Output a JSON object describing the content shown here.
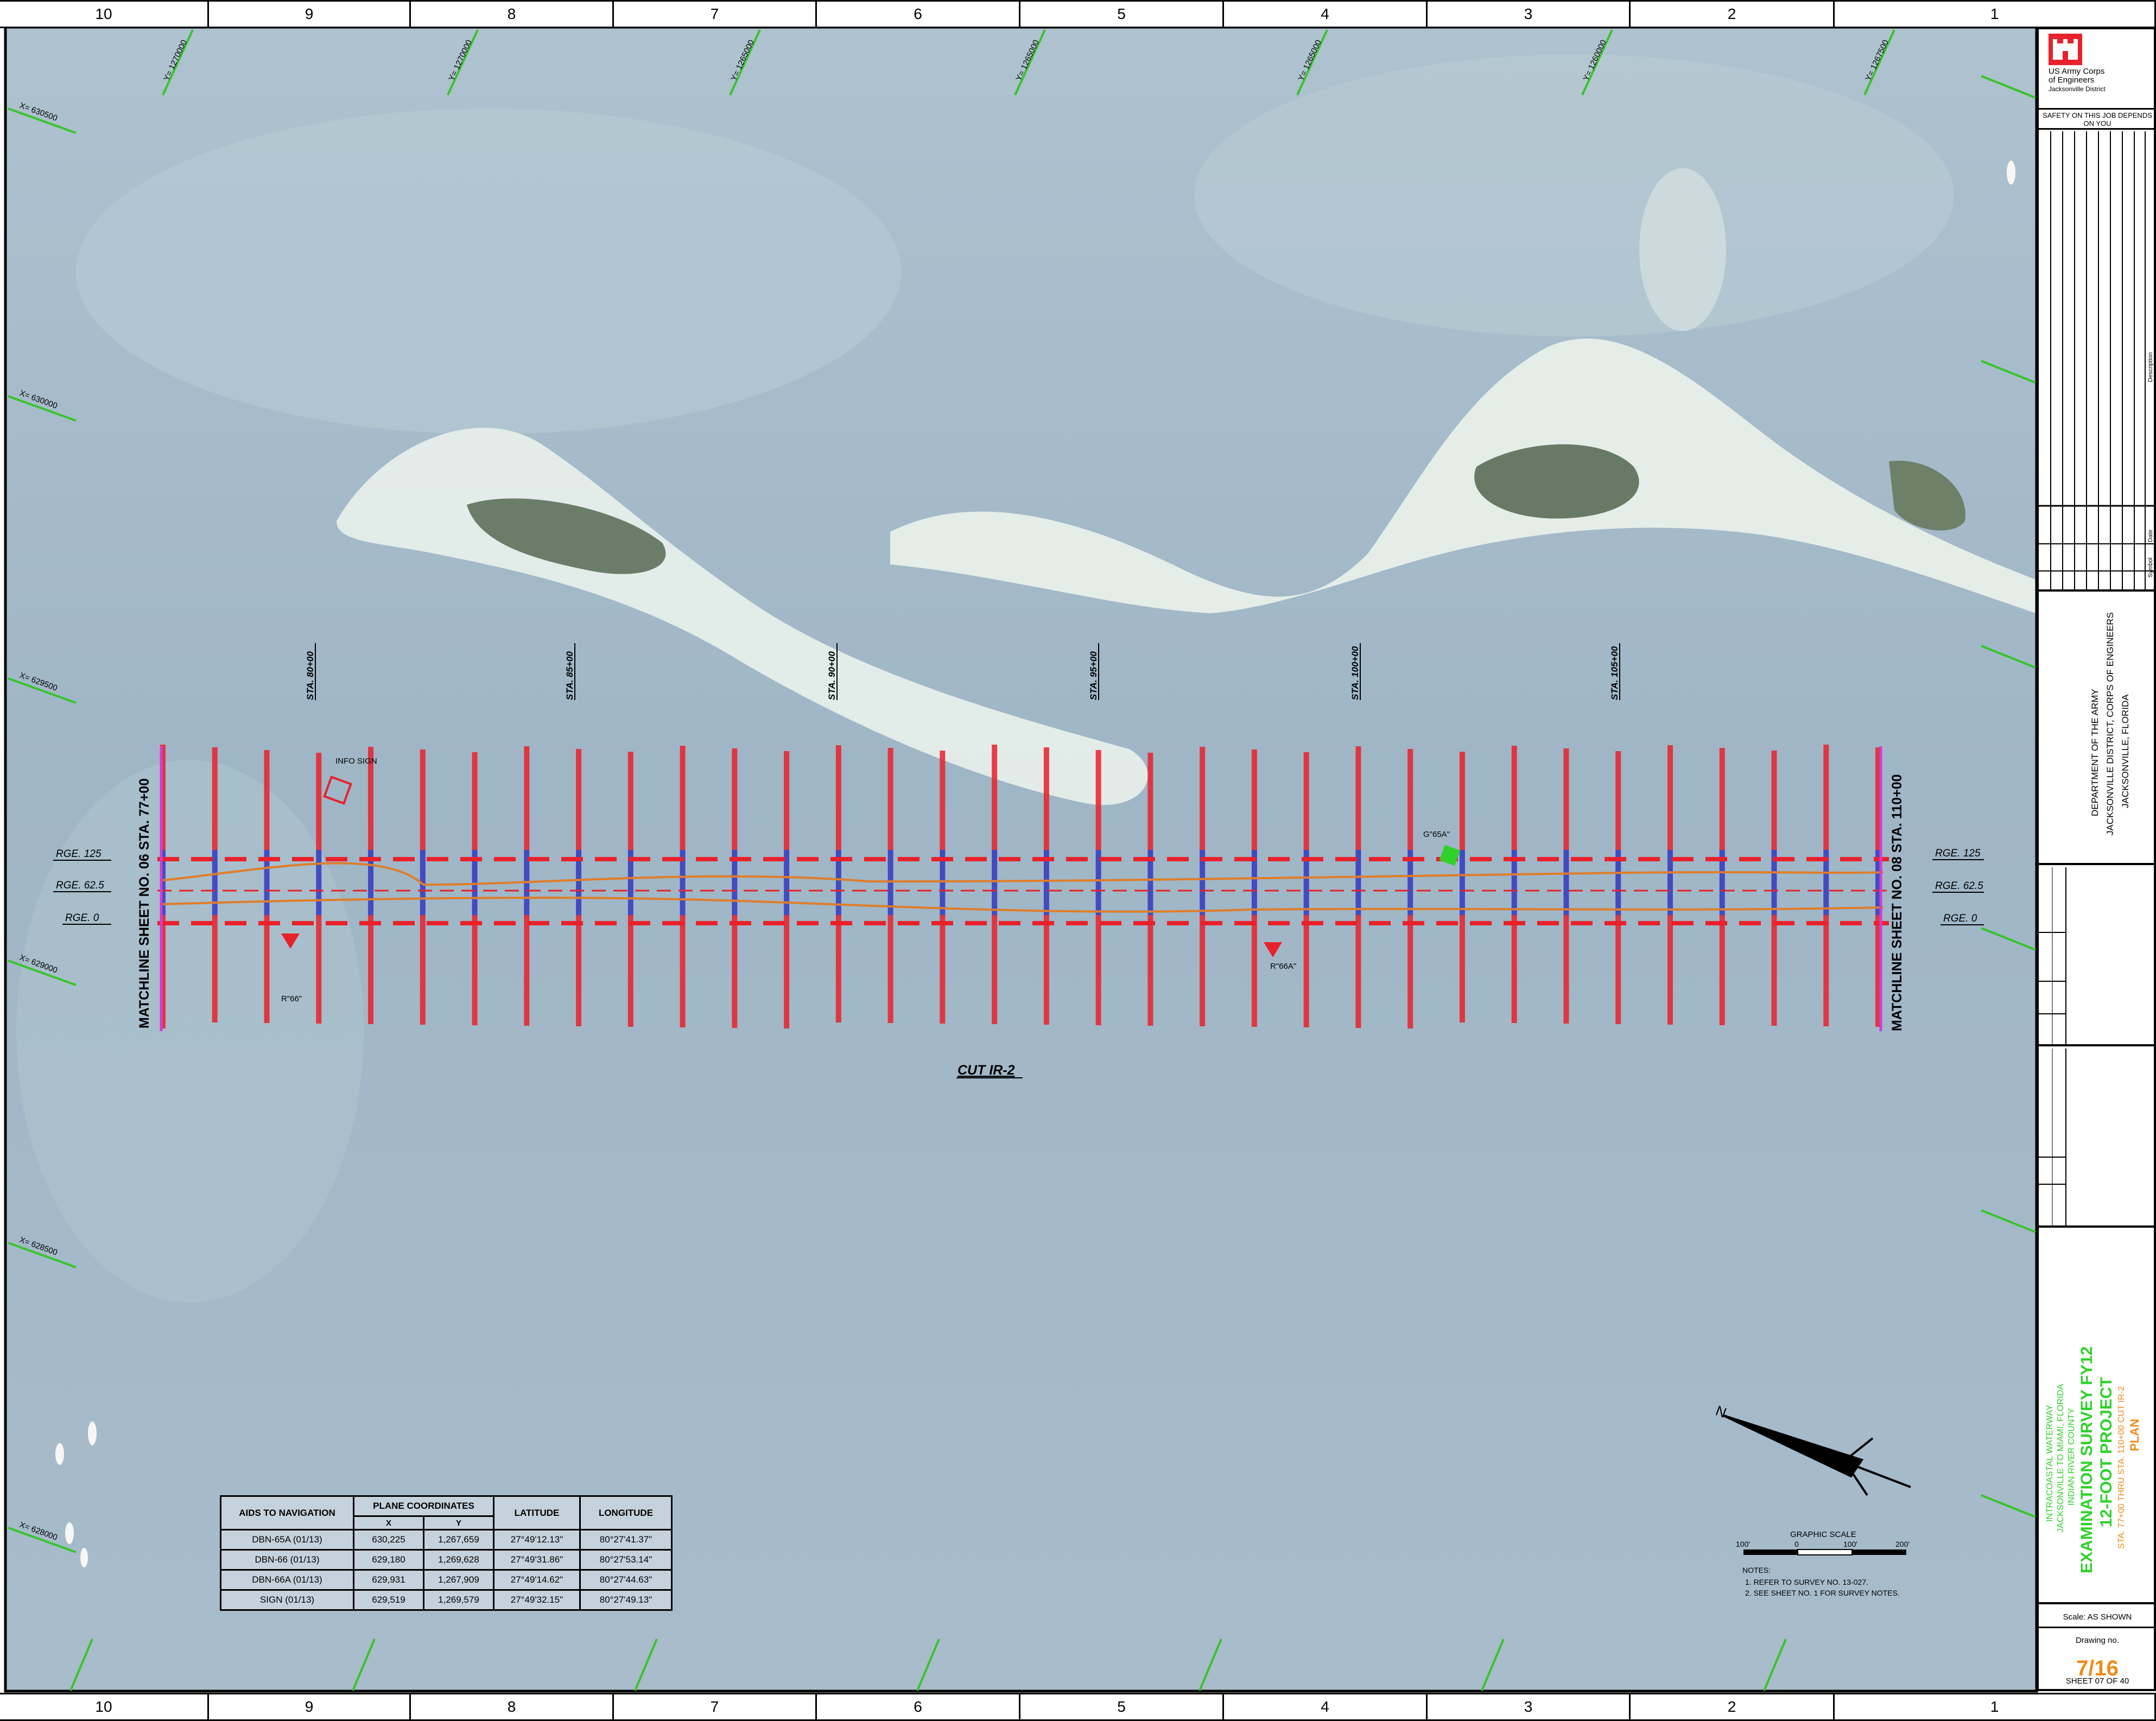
{
  "zone_numbers": [
    "10",
    "9",
    "8",
    "7",
    "6",
    "5",
    "4",
    "3",
    "2",
    "1"
  ],
  "colors": {
    "water": "#9fb7c7",
    "sand": "#eef1ec",
    "survey_red": "#e8212a",
    "depth_blue": "#2b2fbf",
    "channel_orange": "#e07d2a",
    "grid_green": "#37c42a",
    "accent_orange": "#f08a1a",
    "marker_green": "#2fd12a",
    "matchline_magenta": "#d43ad8"
  },
  "grid": {
    "y_labels": [
      "Y= 1270000",
      "Y= 1270000",
      "Y= 1265000",
      "Y= 1265000",
      "Y= 1265000",
      "Y= 1260000",
      "Y= 1267500"
    ],
    "x_labels": [
      "X= 630500",
      "X= 630000",
      "X= 629500",
      "X= 629000",
      "X= 628500",
      "X= 628000"
    ]
  },
  "stations": [
    "STA. 80+00",
    "STA. 85+00",
    "STA. 90+00",
    "STA. 95+00",
    "STA. 100+00",
    "STA. 105+00"
  ],
  "matchlines": {
    "left": "MATCHLINE SHEET NO. 06 STA. 77+00",
    "right": "MATCHLINE SHEET NO. 08 STA. 110+00"
  },
  "ranges": [
    "RGE. 125",
    "RGE. 62.5",
    "RGE. 0"
  ],
  "cut_label": "CUT IR-2",
  "markers": {
    "info_sign": "INFO SIGN",
    "r66": "R\"66\"",
    "r66a": "R\"66A\"",
    "g65a": "G\"65A\""
  },
  "aids_table": {
    "header_aids": "AIDS TO NAVIGATION",
    "header_plane": "PLANE COORDINATES",
    "header_x": "X",
    "header_y": "Y",
    "header_lat": "LATITUDE",
    "header_lon": "LONGITUDE",
    "rows": [
      {
        "name": "DBN-65A (01/13)",
        "x": "630,225",
        "y": "1,267,659",
        "lat": "27°49'12.13\"",
        "lon": "80°27'41.37\""
      },
      {
        "name": "DBN-66 (01/13)",
        "x": "629,180",
        "y": "1,269,628",
        "lat": "27°49'31.86\"",
        "lon": "80°27'53.14\""
      },
      {
        "name": "DBN-66A (01/13)",
        "x": "629,931",
        "y": "1,267,909",
        "lat": "27°49'14.62\"",
        "lon": "80°27'44.63\""
      },
      {
        "name": "SIGN (01/13)",
        "x": "629,519",
        "y": "1,269,579",
        "lat": "27°49'32.15\"",
        "lon": "80°27'49.13\""
      }
    ]
  },
  "scale": {
    "title": "GRAPHIC SCALE",
    "ticks": [
      "100'",
      "0",
      "100'",
      "200'"
    ]
  },
  "notes": {
    "title": "NOTES:",
    "items": [
      "1. REFER TO SURVEY NO. 13-027.",
      "2. SEE SHEET NO. 1 FOR SURVEY NOTES."
    ]
  },
  "title_block": {
    "org_line1": "US Army Corps",
    "org_line2": "of Engineers",
    "org_line3": "Jacksonville District",
    "safety": "SAFETY ON THIS JOB DEPENDS ON YOU",
    "description_col": "Description",
    "date_col": "Date",
    "symbol_col": "Symbol",
    "dept_line1": "DEPARTMENT OF THE ARMY",
    "dept_line2": "JACKSONVILLE DISTRICT, CORPS OF ENGINEERS",
    "dept_line3": "JACKSONVILLE, FLORIDA",
    "proj_line1": "INTRACOASTAL WATERWAY",
    "proj_line2": "JACKSONVILLE TO MIAMI, FLORIDA",
    "proj_line3": "INDIAN RIVER COUNTY",
    "proj_title1": "EXAMINATION SURVEY FY12",
    "proj_title2": "12-FOOT PROJECT",
    "proj_sta": "STA. 77+00 THRU STA. 110+00 CUT IR-2",
    "proj_plan": "PLAN",
    "scale_label": "Scale: AS SHOWN",
    "drawing_label": "Drawing no.",
    "drawing_no": "7/16",
    "sheet_label": "SHEET 07 OF 40"
  }
}
